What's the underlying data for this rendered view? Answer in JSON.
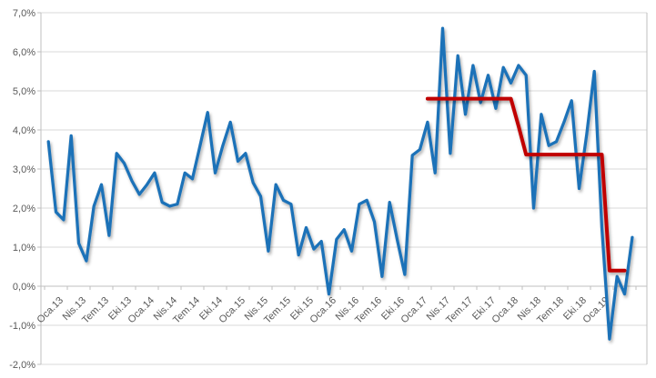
{
  "chart": {
    "background": "#ffffff",
    "gridline_color": "#d9d9d9",
    "axis_line_color": "#bfbfbf",
    "label_color": "#595959",
    "y_axis": {
      "labels": [
        "7,0%",
        "6,0%",
        "5,0%",
        "4,0%",
        "3,0%",
        "2,0%",
        "1,0%",
        "0,0%",
        "-1,0%",
        "-2,0%"
      ],
      "values": [
        7,
        6,
        5,
        4,
        3,
        2,
        1,
        0,
        -1,
        -2
      ]
    },
    "x_axis": {
      "labels": [
        "Oca.13",
        "Nis.13",
        "Tem.13",
        "Eki.13",
        "Oca.14",
        "Nis.14",
        "Tem.14",
        "Eki.14",
        "Oca.15",
        "Nis.15",
        "Tem.15",
        "Eki.15",
        "Oca.16",
        "Nis.16",
        "Tem.16",
        "Eki.16",
        "Oca.17",
        "Nis.17",
        "Tem.17",
        "Eki.17",
        "Oca.18",
        "Nis.18",
        "Tem.18",
        "Eki.18",
        "Oca.19"
      ],
      "months_per_label": 3
    }
  },
  "chart_data": {
    "type": "line",
    "title": "",
    "xlabel": "",
    "ylabel": "",
    "ylim": [
      -2,
      7
    ],
    "y_step": 1,
    "grid": true,
    "legend": false,
    "x_start": "Oca.13",
    "frequency": "monthly",
    "series": [
      {
        "name": "blue-monthly-line",
        "color": "#1f72b8",
        "width": 3.3,
        "values": [
          3.7,
          1.9,
          1.7,
          3.85,
          1.1,
          0.65,
          2.05,
          2.6,
          1.3,
          3.4,
          3.15,
          2.7,
          2.35,
          2.6,
          2.9,
          2.15,
          2.05,
          2.1,
          2.9,
          2.75,
          3.6,
          4.45,
          2.9,
          3.6,
          4.2,
          3.2,
          3.4,
          2.65,
          2.3,
          0.9,
          2.6,
          2.2,
          2.1,
          0.8,
          1.5,
          0.95,
          1.15,
          -0.2,
          1.2,
          1.45,
          0.9,
          2.1,
          2.2,
          1.65,
          0.25,
          2.15,
          1.2,
          0.3,
          3.35,
          3.5,
          4.2,
          2.9,
          6.6,
          3.4,
          5.9,
          4.4,
          5.65,
          4.7,
          5.4,
          4.55,
          5.6,
          5.2,
          5.65,
          5.4,
          2.0,
          4.4,
          3.6,
          3.7,
          4.2,
          4.75,
          2.5,
          3.9,
          5.5,
          1.5,
          -1.35,
          0.25,
          -0.2,
          1.25
        ]
      },
      {
        "name": "red-step-line",
        "color": "#c00000",
        "width": 4,
        "values": [
          null,
          null,
          null,
          null,
          null,
          null,
          null,
          null,
          null,
          null,
          null,
          null,
          null,
          null,
          null,
          null,
          null,
          null,
          null,
          null,
          null,
          null,
          null,
          null,
          null,
          null,
          null,
          null,
          null,
          null,
          null,
          null,
          null,
          null,
          null,
          null,
          null,
          null,
          null,
          null,
          null,
          null,
          null,
          null,
          null,
          null,
          null,
          null,
          null,
          null,
          4.8,
          4.8,
          4.8,
          4.8,
          4.8,
          4.8,
          4.8,
          4.8,
          4.8,
          4.8,
          4.8,
          4.8,
          4.1,
          3.37,
          3.37,
          3.37,
          3.37,
          3.37,
          3.37,
          3.37,
          3.37,
          3.37,
          3.37,
          3.37,
          0.4,
          0.4,
          0.4,
          null
        ]
      }
    ]
  }
}
